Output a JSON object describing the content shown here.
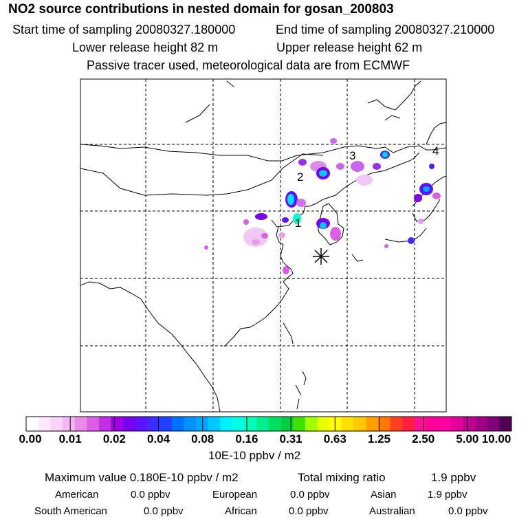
{
  "header": {
    "title": "NO2 source contributions in nested domain for gosan_200803",
    "start_time": "Start time of sampling 20080327.180000",
    "end_time": "End time of sampling 20080327.210000",
    "lower_height": "Lower release height   82 m",
    "upper_height": "Upper release height   62 m",
    "tracer_note": "Passive tracer used, meteorological data are from ECMWF"
  },
  "map": {
    "station_marker": "*",
    "source_labels": [
      "1",
      "2",
      "3",
      "4"
    ]
  },
  "colorbar": {
    "ticks": [
      "0.00",
      "0.01",
      "0.02",
      "0.04",
      "0.08",
      "0.16",
      "0.31",
      "0.63",
      "1.25",
      "2.50",
      "5.00",
      "10.00"
    ],
    "unit": "10E-10 ppbv / m2",
    "colors": [
      "#ffffff",
      "#fde8fd",
      "#fad2fa",
      "#f5b8f5",
      "#ea8dea",
      "#dc5ee6",
      "#c22de6",
      "#a000e6",
      "#7a00f0",
      "#5a14ff",
      "#3b2cff",
      "#2040ff",
      "#0070ff",
      "#0090ff",
      "#00a8ff",
      "#00c8ff",
      "#00f0ff",
      "#00ffe0",
      "#00ffb8",
      "#00f090",
      "#00e060",
      "#00d040",
      "#40e000",
      "#a0ff00",
      "#e8ff00",
      "#ffff00",
      "#ffe000",
      "#ffc800",
      "#ffa000",
      "#ff7800",
      "#ff4020",
      "#ff2040",
      "#ff1090",
      "#ff0098",
      "#ff00a0",
      "#e0009a",
      "#c00090",
      "#a00088",
      "#800078",
      "#500050"
    ]
  },
  "stats": {
    "max_label": "Maximum value  0.180E-10 ppbv / m2",
    "total_label": "Total mixing ratio",
    "total_value": "1.9 ppbv"
  },
  "regions": [
    {
      "name": "American",
      "value": "0.0 ppbv"
    },
    {
      "name": "European",
      "value": "0.0 ppbv"
    },
    {
      "name": "Asian",
      "value": "1.9 ppbv"
    },
    {
      "name": "South American",
      "value": "0.0 ppbv"
    },
    {
      "name": "African",
      "value": "0.0 ppbv"
    },
    {
      "name": "Australian",
      "value": "0.0 ppbv"
    }
  ]
}
